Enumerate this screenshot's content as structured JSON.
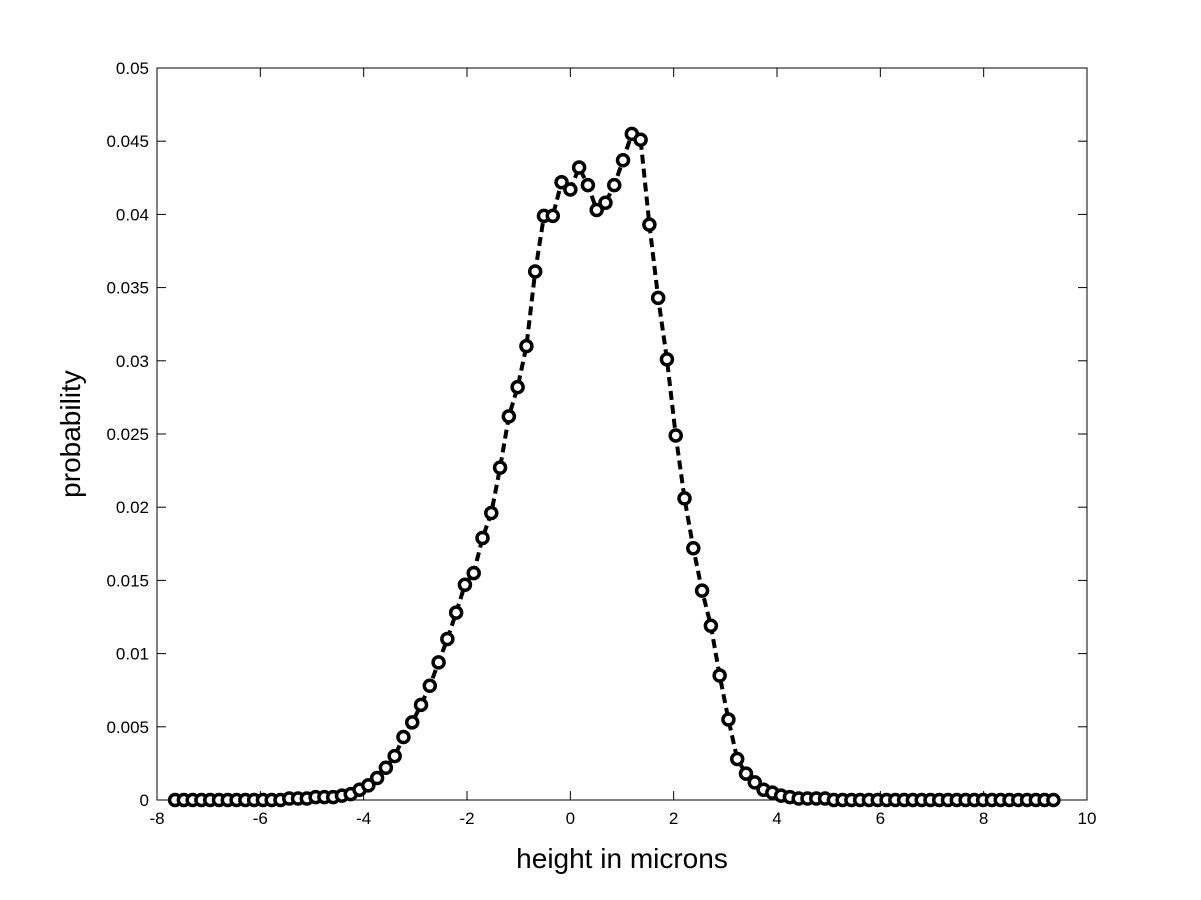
{
  "chart_data": {
    "type": "line",
    "title": "",
    "xlabel": "height in microns",
    "ylabel": "probability",
    "xlim": [
      -8,
      10
    ],
    "ylim": [
      0,
      0.05
    ],
    "grid": false,
    "x_ticks": [
      -8,
      -6,
      -4,
      -2,
      0,
      2,
      4,
      6,
      8,
      10
    ],
    "x_tick_labels": [
      "-8",
      "-6",
      "-4",
      "-2",
      "0",
      "2",
      "4",
      "6",
      "8",
      "10"
    ],
    "y_ticks": [
      0,
      0.005,
      0.01,
      0.015,
      0.02,
      0.025,
      0.03,
      0.035,
      0.04,
      0.045,
      0.05
    ],
    "y_tick_labels": [
      "0",
      "0.005",
      "0.01",
      "0.015",
      "0.02",
      "0.025",
      "0.03",
      "0.035",
      "0.04",
      "0.045",
      "0.05"
    ],
    "series": [
      {
        "line_style": "dashed",
        "marker": "circle",
        "color": "#000000",
        "points": [
          [
            -7.65,
            0.0
          ],
          [
            -7.48,
            0.0
          ],
          [
            -7.31,
            0.0
          ],
          [
            -7.14,
            0.0
          ],
          [
            -6.97,
            0.0
          ],
          [
            -6.8,
            0.0
          ],
          [
            -6.63,
            0.0
          ],
          [
            -6.46,
            0.0
          ],
          [
            -6.29,
            0.0
          ],
          [
            -6.12,
            0.0
          ],
          [
            -5.95,
            0.0
          ],
          [
            -5.78,
            0.0
          ],
          [
            -5.61,
            0.0
          ],
          [
            -5.44,
            0.0001
          ],
          [
            -5.27,
            0.0001
          ],
          [
            -5.1,
            0.0001
          ],
          [
            -4.93,
            0.0002
          ],
          [
            -4.76,
            0.0002
          ],
          [
            -4.59,
            0.0002
          ],
          [
            -4.42,
            0.0003
          ],
          [
            -4.25,
            0.0004
          ],
          [
            -4.08,
            0.0007
          ],
          [
            -3.91,
            0.001
          ],
          [
            -3.74,
            0.0015
          ],
          [
            -3.57,
            0.0022
          ],
          [
            -3.4,
            0.003
          ],
          [
            -3.23,
            0.0043
          ],
          [
            -3.06,
            0.0053
          ],
          [
            -2.89,
            0.0065
          ],
          [
            -2.72,
            0.0078
          ],
          [
            -2.55,
            0.0094
          ],
          [
            -2.38,
            0.011
          ],
          [
            -2.21,
            0.0128
          ],
          [
            -2.04,
            0.0147
          ],
          [
            -1.87,
            0.0155
          ],
          [
            -1.7,
            0.0179
          ],
          [
            -1.53,
            0.0196
          ],
          [
            -1.36,
            0.0227
          ],
          [
            -1.19,
            0.0262
          ],
          [
            -1.02,
            0.0282
          ],
          [
            -0.85,
            0.031
          ],
          [
            -0.68,
            0.0361
          ],
          [
            -0.51,
            0.0399
          ],
          [
            -0.34,
            0.0399
          ],
          [
            -0.17,
            0.0422
          ],
          [
            0.0,
            0.0417
          ],
          [
            0.17,
            0.0432
          ],
          [
            0.34,
            0.042
          ],
          [
            0.51,
            0.0403
          ],
          [
            0.68,
            0.0408
          ],
          [
            0.85,
            0.042
          ],
          [
            1.02,
            0.0437
          ],
          [
            1.19,
            0.0455
          ],
          [
            1.36,
            0.0451
          ],
          [
            1.53,
            0.0393
          ],
          [
            1.7,
            0.0343
          ],
          [
            1.87,
            0.0301
          ],
          [
            2.04,
            0.0249
          ],
          [
            2.21,
            0.0206
          ],
          [
            2.38,
            0.0172
          ],
          [
            2.55,
            0.0143
          ],
          [
            2.72,
            0.0119
          ],
          [
            2.89,
            0.0085
          ],
          [
            3.06,
            0.0055
          ],
          [
            3.23,
            0.0028
          ],
          [
            3.4,
            0.0018
          ],
          [
            3.57,
            0.0012
          ],
          [
            3.74,
            0.0007
          ],
          [
            3.91,
            0.0005
          ],
          [
            4.08,
            0.0003
          ],
          [
            4.25,
            0.0002
          ],
          [
            4.42,
            0.0001
          ],
          [
            4.59,
            0.0001
          ],
          [
            4.76,
            0.0001
          ],
          [
            4.93,
            0.0001
          ],
          [
            5.1,
            0.0
          ],
          [
            5.27,
            0.0
          ],
          [
            5.44,
            0.0
          ],
          [
            5.61,
            0.0
          ],
          [
            5.78,
            0.0
          ],
          [
            5.95,
            0.0
          ],
          [
            6.12,
            0.0
          ],
          [
            6.29,
            0.0
          ],
          [
            6.46,
            0.0
          ],
          [
            6.63,
            0.0
          ],
          [
            6.8,
            0.0
          ],
          [
            6.97,
            0.0
          ],
          [
            7.14,
            0.0
          ],
          [
            7.31,
            0.0
          ],
          [
            7.48,
            0.0
          ],
          [
            7.65,
            0.0
          ],
          [
            7.82,
            0.0
          ],
          [
            7.99,
            0.0
          ],
          [
            8.16,
            0.0
          ],
          [
            8.33,
            0.0
          ],
          [
            8.5,
            0.0
          ],
          [
            8.67,
            0.0
          ],
          [
            8.84,
            0.0
          ],
          [
            9.01,
            0.0
          ],
          [
            9.18,
            0.0
          ],
          [
            9.35,
            0.0
          ]
        ]
      }
    ]
  }
}
